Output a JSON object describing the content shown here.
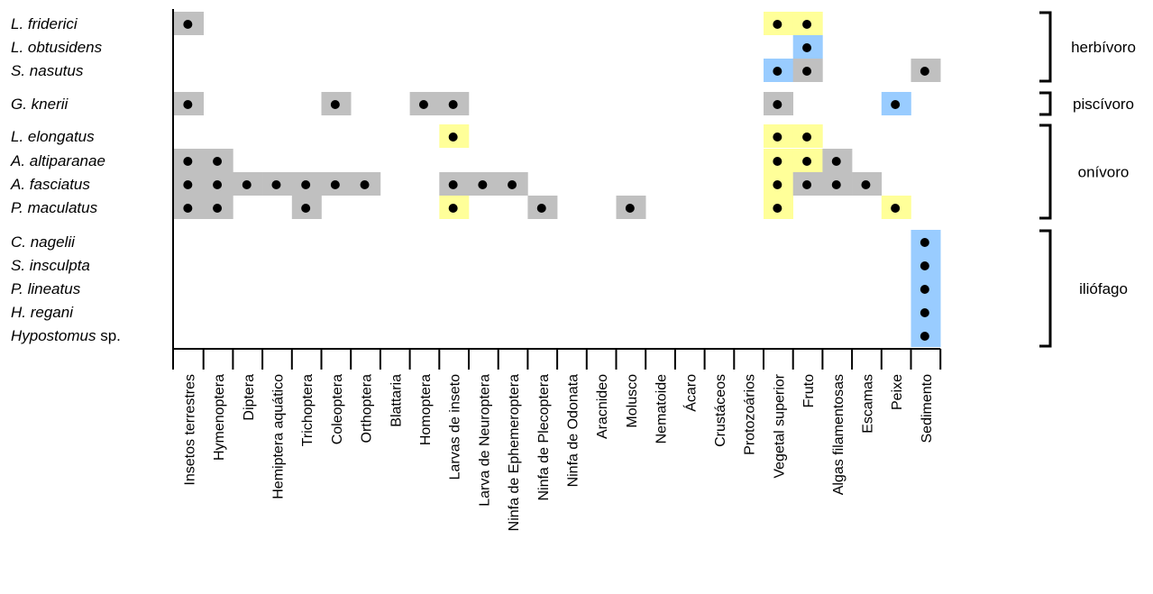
{
  "chart_data": {
    "type": "heatmap",
    "title": "",
    "colors": {
      "grey": "#c0c0c0",
      "yellow": "#ffff99",
      "blue": "#99ccff",
      "dot": "#000000",
      "axis": "#000000"
    },
    "species": [
      {
        "name": "L. friderici"
      },
      {
        "name": "L. obtusidens"
      },
      {
        "name": "S. nasutus"
      },
      {
        "name": "G. knerii"
      },
      {
        "name": "L. elongatus"
      },
      {
        "name": "A. altiparanae"
      },
      {
        "name": "A. fasciatus"
      },
      {
        "name": "P. maculatus"
      },
      {
        "name": "C. nagelii"
      },
      {
        "name": "S. insculpta"
      },
      {
        "name": "P. lineatus"
      },
      {
        "name": "H. regani"
      },
      {
        "name": "Hypostomus",
        "suffix": " sp."
      }
    ],
    "food_items": [
      "Insetos terrestres",
      "Hymenoptera",
      "Diptera",
      "Hemiptera aquático",
      "Trichoptera",
      "Coleoptera",
      "Orthoptera",
      "Blattaria",
      "Homoptera",
      "Larvas de inseto",
      "Larva de Neuroptera",
      "Ninfa de Ephemeroptera",
      "Ninfa de Plecoptera",
      "Ninfa de Odonata",
      "Aracnideo",
      "Molusco",
      "Nematoide",
      "Ácaro",
      "Crustáceos",
      "Protozoários",
      "Vegetal superior",
      "Fruto",
      "Algas filamentosas",
      "Escamas",
      "Peixe",
      "Sedimento"
    ],
    "groups": [
      {
        "label": "herbívoro",
        "first": 0,
        "last": 2
      },
      {
        "label": "piscívoro",
        "first": 3,
        "last": 3
      },
      {
        "label": "onívoro",
        "first": 4,
        "last": 7
      },
      {
        "label": "iliófago",
        "first": 8,
        "last": 12
      }
    ],
    "cells": [
      {
        "row": 0,
        "col": 0,
        "color": "grey",
        "dot": true
      },
      {
        "row": 0,
        "col": 20,
        "color": "yellow",
        "dot": true
      },
      {
        "row": 0,
        "col": 21,
        "color": "yellow",
        "dot": true
      },
      {
        "row": 1,
        "col": 21,
        "color": "blue",
        "dot": true
      },
      {
        "row": 2,
        "col": 20,
        "color": "blue",
        "dot": true
      },
      {
        "row": 2,
        "col": 21,
        "color": "grey",
        "dot": true
      },
      {
        "row": 2,
        "col": 25,
        "color": "grey",
        "dot": true
      },
      {
        "row": 3,
        "col": 0,
        "color": "grey",
        "dot": true
      },
      {
        "row": 3,
        "col": 5,
        "color": "grey",
        "dot": true
      },
      {
        "row": 3,
        "col": 8,
        "color": "grey",
        "dot": true
      },
      {
        "row": 3,
        "col": 9,
        "color": "grey",
        "dot": true
      },
      {
        "row": 3,
        "col": 20,
        "color": "grey",
        "dot": true
      },
      {
        "row": 3,
        "col": 24,
        "color": "blue",
        "dot": true
      },
      {
        "row": 4,
        "col": 9,
        "color": "yellow",
        "dot": true
      },
      {
        "row": 4,
        "col": 20,
        "color": "yellow",
        "dot": true
      },
      {
        "row": 4,
        "col": 21,
        "color": "yellow",
        "dot": true
      },
      {
        "row": 5,
        "col": 0,
        "color": "grey",
        "dot": true
      },
      {
        "row": 5,
        "col": 1,
        "color": "grey",
        "dot": true
      },
      {
        "row": 5,
        "col": 20,
        "color": "yellow",
        "dot": true
      },
      {
        "row": 5,
        "col": 21,
        "color": "yellow",
        "dot": true
      },
      {
        "row": 5,
        "col": 22,
        "color": "grey",
        "dot": true
      },
      {
        "row": 6,
        "col": 0,
        "color": "grey",
        "dot": true
      },
      {
        "row": 6,
        "col": 1,
        "color": "grey",
        "dot": true
      },
      {
        "row": 6,
        "col": 2,
        "color": "grey",
        "dot": true
      },
      {
        "row": 6,
        "col": 3,
        "color": "grey",
        "dot": true
      },
      {
        "row": 6,
        "col": 4,
        "color": "grey",
        "dot": true
      },
      {
        "row": 6,
        "col": 5,
        "color": "grey",
        "dot": true
      },
      {
        "row": 6,
        "col": 6,
        "color": "grey",
        "dot": true
      },
      {
        "row": 6,
        "col": 9,
        "color": "grey",
        "dot": true
      },
      {
        "row": 6,
        "col": 10,
        "color": "grey",
        "dot": true
      },
      {
        "row": 6,
        "col": 11,
        "color": "grey",
        "dot": true
      },
      {
        "row": 6,
        "col": 20,
        "color": "yellow",
        "dot": true
      },
      {
        "row": 6,
        "col": 21,
        "color": "grey",
        "dot": true
      },
      {
        "row": 6,
        "col": 22,
        "color": "grey",
        "dot": true
      },
      {
        "row": 6,
        "col": 23,
        "color": "grey",
        "dot": true
      },
      {
        "row": 7,
        "col": 0,
        "color": "grey",
        "dot": true
      },
      {
        "row": 7,
        "col": 1,
        "color": "grey",
        "dot": true
      },
      {
        "row": 7,
        "col": 4,
        "color": "grey",
        "dot": true
      },
      {
        "row": 7,
        "col": 9,
        "color": "yellow",
        "dot": true
      },
      {
        "row": 7,
        "col": 12,
        "color": "grey",
        "dot": true
      },
      {
        "row": 7,
        "col": 15,
        "color": "grey",
        "dot": true
      },
      {
        "row": 7,
        "col": 20,
        "color": "yellow",
        "dot": true
      },
      {
        "row": 7,
        "col": 24,
        "color": "yellow",
        "dot": true
      },
      {
        "row": 8,
        "col": 25,
        "color": "blue",
        "dot": true
      },
      {
        "row": 9,
        "col": 25,
        "color": "blue",
        "dot": true
      },
      {
        "row": 10,
        "col": 25,
        "color": "blue",
        "dot": true
      },
      {
        "row": 11,
        "col": 25,
        "color": "blue",
        "dot": true
      },
      {
        "row": 12,
        "col": 25,
        "color": "blue",
        "dot": true
      }
    ]
  }
}
